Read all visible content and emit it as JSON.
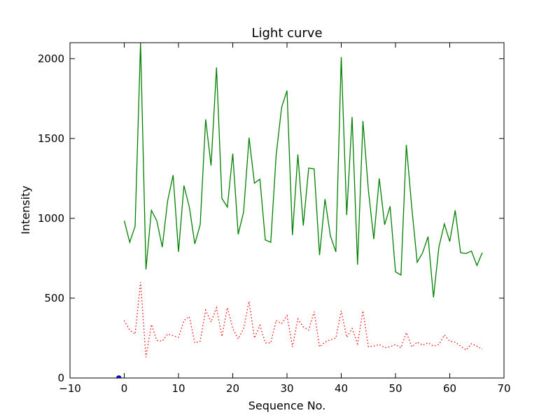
{
  "chart_data": {
    "type": "line",
    "title": "Light curve",
    "xlabel": "Sequence No.",
    "ylabel": "Intensity",
    "xlim": [
      -10,
      70
    ],
    "ylim": [
      0,
      2100
    ],
    "xticks": [
      -10,
      0,
      10,
      20,
      30,
      40,
      50,
      60,
      70
    ],
    "yticks": [
      0,
      500,
      1000,
      1500,
      2000
    ],
    "grid": false,
    "series": [
      {
        "style": "solid",
        "color": "#008000",
        "x": [
          0,
          1,
          2,
          3,
          4,
          5,
          6,
          7,
          8,
          9,
          10,
          11,
          12,
          13,
          14,
          15,
          16,
          17,
          18,
          19,
          20,
          21,
          22,
          23,
          24,
          25,
          26,
          27,
          28,
          29,
          30,
          31,
          32,
          33,
          34,
          35,
          36,
          37,
          38,
          39,
          40,
          41,
          42,
          43,
          44,
          45,
          46,
          47,
          48,
          49,
          50,
          51,
          52,
          53,
          54,
          55,
          56,
          57,
          58,
          59,
          60,
          61,
          62,
          63,
          64,
          65,
          66
        ],
        "values": [
          985,
          850,
          950,
          2100,
          680,
          1050,
          985,
          820,
          1110,
          1270,
          790,
          1205,
          1070,
          840,
          960,
          1620,
          1330,
          1945,
          1125,
          1070,
          1405,
          900,
          1040,
          1505,
          1220,
          1245,
          865,
          850,
          1395,
          1695,
          1800,
          895,
          1400,
          955,
          1315,
          1310,
          770,
          1120,
          890,
          790,
          2010,
          1020,
          1635,
          710,
          1610,
          1175,
          870,
          1250,
          960,
          1075,
          665,
          645,
          1460,
          1065,
          725,
          785,
          885,
          505,
          820,
          965,
          855,
          1050,
          785,
          780,
          795,
          705,
          785
        ]
      },
      {
        "style": "dotted",
        "color": "#ff0000",
        "x": [
          0,
          1,
          2,
          3,
          4,
          5,
          6,
          7,
          8,
          9,
          10,
          11,
          12,
          13,
          14,
          15,
          16,
          17,
          18,
          19,
          20,
          21,
          22,
          23,
          24,
          25,
          26,
          27,
          28,
          29,
          30,
          31,
          32,
          33,
          34,
          35,
          36,
          37,
          38,
          39,
          40,
          41,
          42,
          43,
          44,
          45,
          46,
          47,
          48,
          49,
          50,
          51,
          52,
          53,
          54,
          55,
          56,
          57,
          58,
          59,
          60,
          61,
          62,
          63,
          64,
          65,
          66
        ],
        "values": [
          360,
          300,
          275,
          600,
          130,
          335,
          235,
          230,
          275,
          265,
          255,
          360,
          385,
          220,
          230,
          425,
          350,
          440,
          260,
          440,
          310,
          245,
          310,
          480,
          250,
          330,
          220,
          220,
          360,
          340,
          390,
          195,
          370,
          320,
          300,
          415,
          195,
          225,
          240,
          250,
          420,
          255,
          310,
          215,
          420,
          195,
          200,
          210,
          190,
          195,
          210,
          190,
          285,
          195,
          225,
          205,
          220,
          200,
          210,
          270,
          230,
          225,
          200,
          175,
          215,
          200,
          180
        ]
      },
      {
        "style": "point",
        "color": "#0000ff",
        "x": [
          -1
        ],
        "values": [
          0
        ]
      }
    ]
  }
}
